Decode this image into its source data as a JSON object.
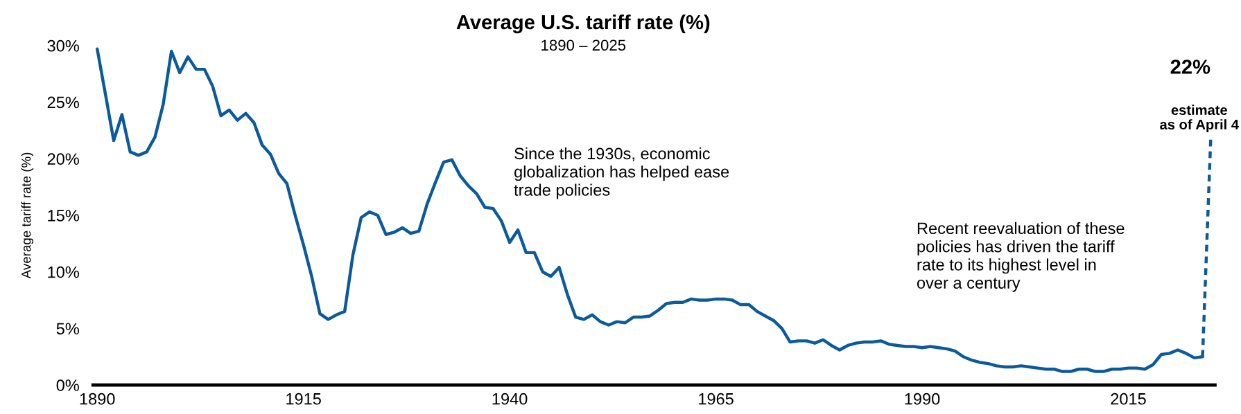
{
  "chart_data": {
    "type": "line",
    "title": "Average U.S. tariff rate (%)",
    "subtitle": "1890 – 2025",
    "ylabel": "Average tariff rate (%)",
    "series": [
      {
        "color": "#0b5a9c",
        "line_style": "solid",
        "x": [
          1890,
          1891,
          1892,
          1893,
          1894,
          1895,
          1896,
          1897,
          1898,
          1899,
          1900,
          1901,
          1902,
          1903,
          1904,
          1905,
          1906,
          1907,
          1908,
          1909,
          1910,
          1911,
          1912,
          1913,
          1914,
          1915,
          1916,
          1917,
          1918,
          1919,
          1920,
          1921,
          1922,
          1923,
          1924,
          1925,
          1926,
          1927,
          1928,
          1929,
          1930,
          1931,
          1932,
          1933,
          1934,
          1935,
          1936,
          1937,
          1938,
          1939,
          1940,
          1941,
          1942,
          1943,
          1944,
          1945,
          1946,
          1947,
          1948,
          1949,
          1950,
          1951,
          1952,
          1953,
          1954,
          1955,
          1956,
          1957,
          1958,
          1959,
          1960,
          1961,
          1962,
          1963,
          1964,
          1965,
          1966,
          1967,
          1968,
          1969,
          1970,
          1971,
          1972,
          1973,
          1974,
          1975,
          1976,
          1977,
          1978,
          1979,
          1980,
          1981,
          1982,
          1983,
          1984,
          1985,
          1986,
          1987,
          1988,
          1989,
          1990,
          1991,
          1992,
          1993,
          1994,
          1995,
          1996,
          1997,
          1998,
          1999,
          2000,
          2001,
          2002,
          2003,
          2004,
          2005,
          2006,
          2007,
          2008,
          2009,
          2010,
          2011,
          2012,
          2013,
          2014,
          2015,
          2016,
          2017,
          2018,
          2019,
          2020,
          2021,
          2022,
          2023,
          2024
        ],
        "values": [
          29.7,
          25.7,
          21.6,
          23.9,
          20.6,
          20.3,
          20.6,
          21.9,
          24.8,
          29.5,
          27.6,
          29.0,
          27.9,
          27.9,
          26.4,
          23.8,
          24.3,
          23.4,
          24.0,
          23.2,
          21.2,
          20.4,
          18.7,
          17.8,
          15.0,
          12.4,
          9.6,
          6.3,
          5.8,
          6.2,
          6.5,
          11.5,
          14.8,
          15.3,
          15.0,
          13.3,
          13.5,
          13.9,
          13.4,
          13.6,
          16.0,
          17.9,
          19.7,
          19.9,
          18.5,
          17.6,
          16.9,
          15.7,
          15.6,
          14.5,
          12.6,
          13.7,
          11.7,
          11.7,
          10.0,
          9.6,
          10.4,
          8.0,
          6.0,
          5.8,
          6.2,
          5.6,
          5.3,
          5.6,
          5.5,
          6.0,
          6.0,
          6.1,
          6.6,
          7.2,
          7.3,
          7.3,
          7.6,
          7.5,
          7.5,
          7.6,
          7.6,
          7.5,
          7.1,
          7.1,
          6.5,
          6.1,
          5.7,
          5.0,
          3.8,
          3.9,
          3.9,
          3.7,
          4.0,
          3.5,
          3.1,
          3.5,
          3.7,
          3.8,
          3.8,
          3.9,
          3.6,
          3.5,
          3.4,
          3.4,
          3.3,
          3.4,
          3.3,
          3.2,
          3.0,
          2.5,
          2.2,
          2.0,
          1.9,
          1.7,
          1.6,
          1.6,
          1.7,
          1.6,
          1.5,
          1.4,
          1.4,
          1.2,
          1.2,
          1.4,
          1.4,
          1.2,
          1.2,
          1.4,
          1.4,
          1.5,
          1.5,
          1.4,
          1.8,
          2.7,
          2.8,
          3.1,
          2.8,
          2.4,
          2.5
        ]
      },
      {
        "color": "#0b5a9c",
        "line_style": "dashed",
        "x": [
          2024,
          2025
        ],
        "values": [
          2.5,
          22
        ]
      }
    ],
    "xlim": [
      1889.5,
      2025.5
    ],
    "xticks": [
      1890,
      1915,
      1940,
      1965,
      1990,
      2015
    ],
    "ylim": [
      0,
      30
    ],
    "yticks": [
      {
        "value": 0,
        "label": "0%"
      },
      {
        "value": 5,
        "label": "5%"
      },
      {
        "value": 10,
        "label": "10%"
      },
      {
        "value": 15,
        "label": "15%"
      },
      {
        "value": 20,
        "label": "20%"
      },
      {
        "value": 25,
        "label": "25%"
      },
      {
        "value": 30,
        "label": "30%"
      }
    ],
    "grid": false,
    "marker": "none",
    "annotations": [
      "Since the 1930s, economic\nglobalization has helped ease\ntrade policies",
      "Recent reevaluation of these\npolicies has driven the tariff\nrate to its highest level in\nover a century",
      "22%",
      {
        "text": "estimate\nas of April 4",
        "x": 2025,
        "y": 22
      }
    ]
  }
}
